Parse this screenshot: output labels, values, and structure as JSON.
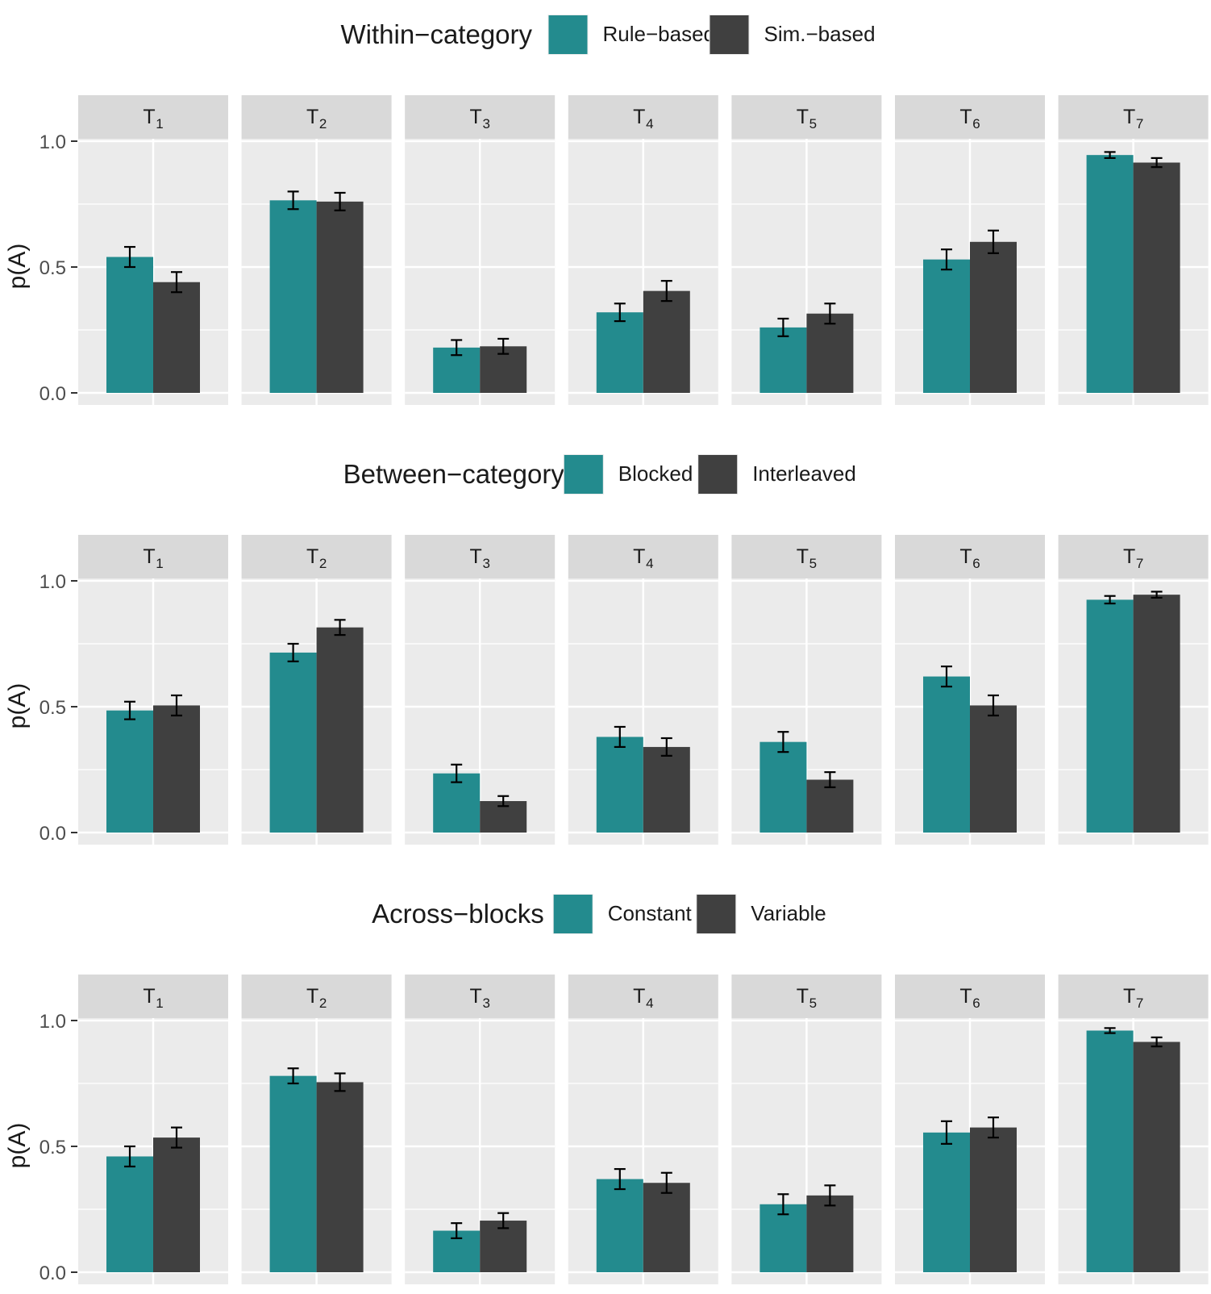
{
  "colors": {
    "teal": "#238b8e",
    "dark": "#404040",
    "panel_bg": "#ebebeb",
    "strip_bg": "#d9d9d9",
    "grid": "#ffffff",
    "axis_text": "#4d4d4d",
    "text": "#1a1a1a"
  },
  "facet_labels": [
    {
      "main": "T",
      "sub": "1"
    },
    {
      "main": "T",
      "sub": "2"
    },
    {
      "main": "T",
      "sub": "3"
    },
    {
      "main": "T",
      "sub": "4"
    },
    {
      "main": "T",
      "sub": "5"
    },
    {
      "main": "T",
      "sub": "6"
    },
    {
      "main": "T",
      "sub": "7"
    }
  ],
  "chart_data": [
    {
      "type": "bar",
      "legend_title": "Within−category",
      "ylabel": "p(A)",
      "ylim": [
        0,
        1.15
      ],
      "yticks": [
        "0.0",
        "0.5",
        "1.0"
      ],
      "ytick_values": [
        0,
        0.5,
        1.0
      ],
      "categories": [
        "T1",
        "T2",
        "T3",
        "T4",
        "T5",
        "T6",
        "T7"
      ],
      "series": [
        {
          "name": "Rule−based",
          "color": "teal",
          "values": [
            0.54,
            0.765,
            0.18,
            0.32,
            0.26,
            0.53,
            0.945
          ],
          "errors": [
            0.04,
            0.035,
            0.03,
            0.035,
            0.035,
            0.04,
            0.012
          ]
        },
        {
          "name": "Sim.−based",
          "color": "dark",
          "values": [
            0.44,
            0.76,
            0.185,
            0.405,
            0.315,
            0.6,
            0.915
          ],
          "errors": [
            0.04,
            0.035,
            0.03,
            0.04,
            0.04,
            0.045,
            0.018
          ]
        }
      ]
    },
    {
      "type": "bar",
      "legend_title": "Between−category",
      "ylabel": "p(A)",
      "ylim": [
        0,
        1.15
      ],
      "yticks": [
        "0.0",
        "0.5",
        "1.0"
      ],
      "ytick_values": [
        0,
        0.5,
        1.0
      ],
      "categories": [
        "T1",
        "T2",
        "T3",
        "T4",
        "T5",
        "T6",
        "T7"
      ],
      "series": [
        {
          "name": "Blocked",
          "color": "teal",
          "values": [
            0.485,
            0.715,
            0.235,
            0.38,
            0.36,
            0.62,
            0.925
          ],
          "errors": [
            0.035,
            0.035,
            0.035,
            0.04,
            0.04,
            0.04,
            0.015
          ]
        },
        {
          "name": "Interleaved",
          "color": "dark",
          "values": [
            0.505,
            0.815,
            0.125,
            0.34,
            0.21,
            0.505,
            0.945
          ],
          "errors": [
            0.04,
            0.03,
            0.02,
            0.035,
            0.03,
            0.04,
            0.012
          ]
        }
      ]
    },
    {
      "type": "bar",
      "legend_title": "Across−blocks",
      "ylabel": "p(A)",
      "ylim": [
        0,
        1.15
      ],
      "yticks": [
        "0.0",
        "0.5",
        "1.0"
      ],
      "ytick_values": [
        0,
        0.5,
        1.0
      ],
      "categories": [
        "T1",
        "T2",
        "T3",
        "T4",
        "T5",
        "T6",
        "T7"
      ],
      "series": [
        {
          "name": "Constant",
          "color": "teal",
          "values": [
            0.46,
            0.78,
            0.165,
            0.37,
            0.27,
            0.555,
            0.96
          ],
          "errors": [
            0.04,
            0.03,
            0.03,
            0.04,
            0.04,
            0.045,
            0.01
          ]
        },
        {
          "name": "Variable",
          "color": "dark",
          "values": [
            0.535,
            0.755,
            0.205,
            0.355,
            0.305,
            0.575,
            0.915
          ],
          "errors": [
            0.04,
            0.035,
            0.03,
            0.04,
            0.04,
            0.04,
            0.018
          ]
        }
      ]
    }
  ]
}
